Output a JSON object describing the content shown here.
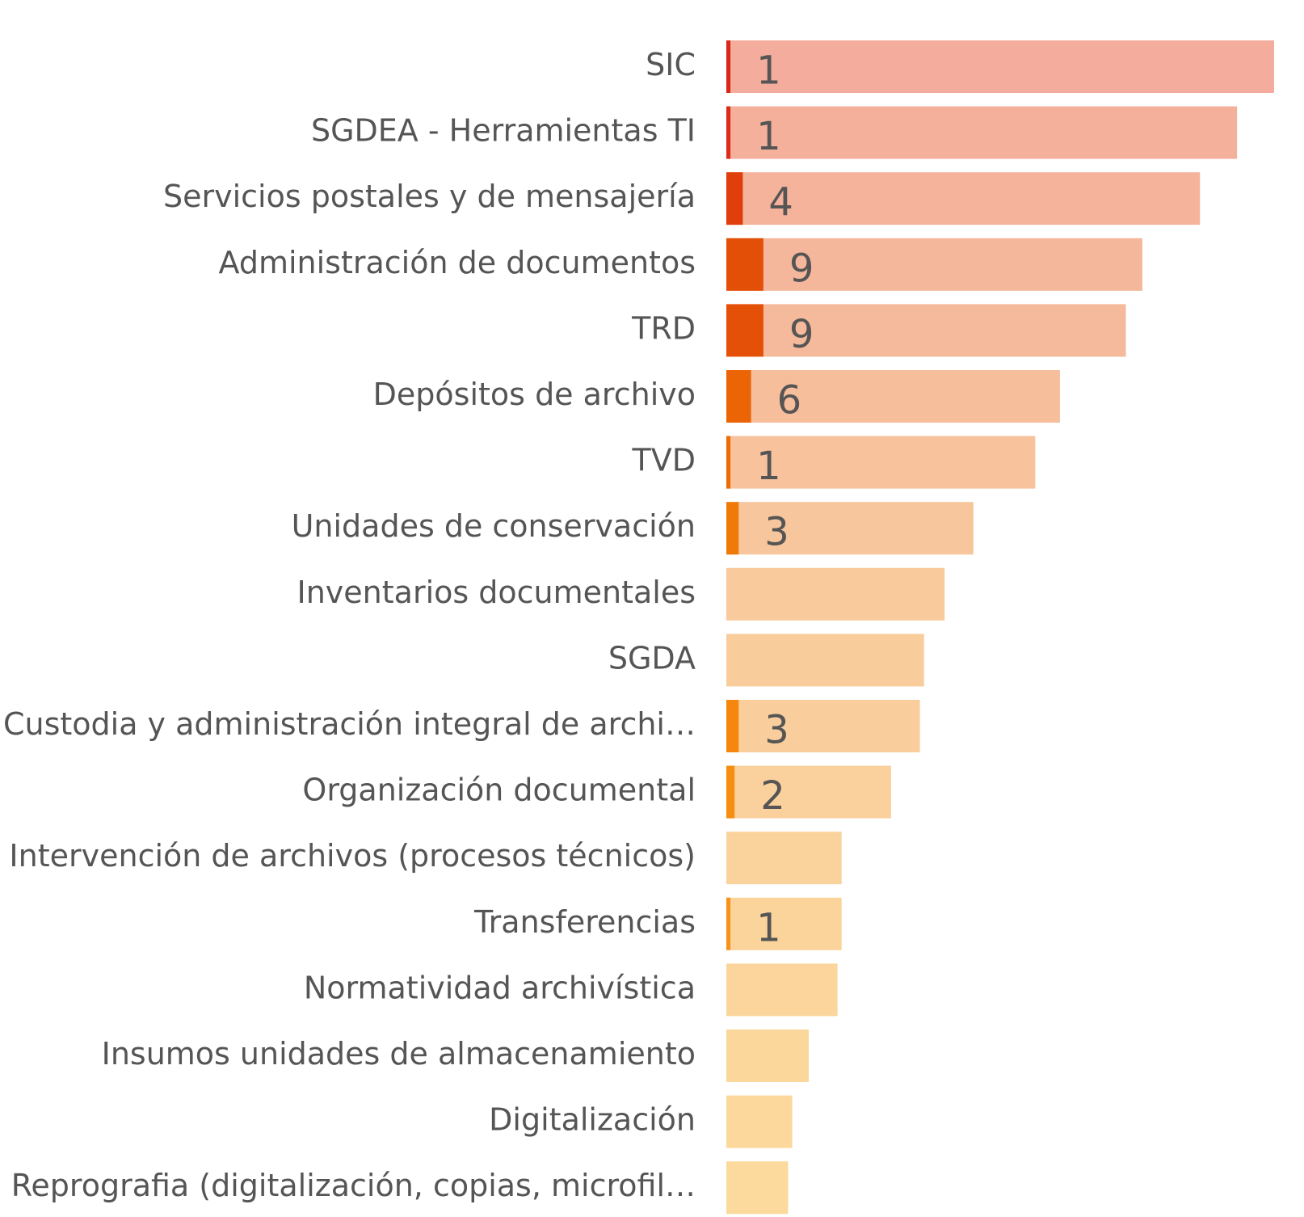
{
  "chart_data": {
    "type": "bar",
    "orientation": "horizontal",
    "categories": [
      "SIC",
      "SGDEA - Herramientas TI",
      "Servicios postales y de mensajería",
      "Administración de documentos",
      "TRD",
      "Depósitos de archivo",
      "TVD",
      "Unidades de conservación",
      "Inventarios documentales",
      "SGDA",
      "Custodia y administración integral de archi…",
      "Organización documental",
      "Intervención de archivos (procesos técnicos)",
      "Transferencias",
      "Normatividad archivística",
      "Insumos unidades de almacenamiento",
      "Digitalización",
      "Reprografia (digitalización, copias, microfil…"
    ],
    "xlim": [
      0,
      133
    ],
    "series": [
      {
        "values": [
          133,
          124,
          115,
          101,
          97,
          81,
          75,
          60,
          53,
          48,
          47,
          40,
          28,
          28,
          27,
          20,
          16,
          15
        ],
        "colors": [
          "#f4ad9c",
          "#f4b09b",
          "#f4b39a",
          "#f5b79b",
          "#f5b99b",
          "#f6be9b",
          "#f7c29c",
          "#f7c69c",
          "#f8ca9c",
          "#f9cc9c",
          "#f9ce9c",
          "#fad09c",
          "#fad39c",
          "#fbd49c",
          "#fbd59c",
          "#fbd79c",
          "#fcd89c",
          "#fcd99c"
        ]
      },
      {
        "values": [
          1,
          1,
          4,
          9,
          9,
          6,
          1,
          3,
          null,
          null,
          3,
          2,
          null,
          1,
          null,
          null,
          null,
          null
        ],
        "colors": [
          "#d8281c",
          "#db2c18",
          "#e03e0a",
          "#e44f08",
          "#e45008",
          "#eb6405",
          "#ec6c05",
          "#f07a08",
          null,
          null,
          "#f5880c",
          "#f68e10",
          null,
          "#f7931a",
          null,
          null,
          null,
          null
        ]
      }
    ]
  }
}
